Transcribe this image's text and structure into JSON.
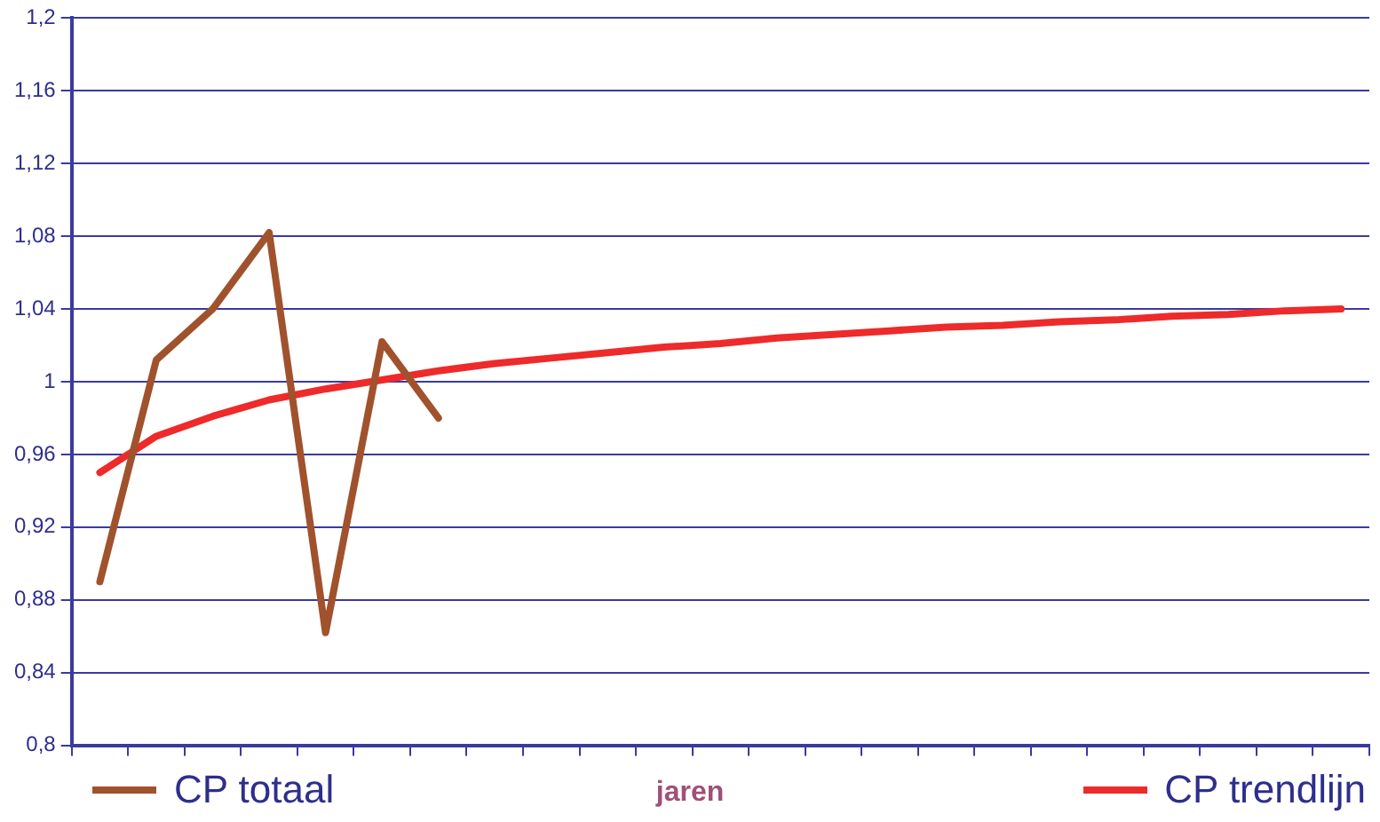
{
  "chart_data": {
    "type": "line",
    "xlabel": "jaren",
    "categories": [
      null,
      null,
      null,
      null,
      null,
      null,
      null,
      null,
      null,
      null,
      null,
      null,
      null,
      null,
      null,
      null,
      null,
      null,
      null,
      null,
      null,
      null,
      null
    ],
    "series": [
      {
        "name": "CP totaal",
        "color": "#a0522d",
        "values": [
          0.89,
          1.012,
          1.04,
          1.082,
          0.862,
          1.022,
          0.98,
          null,
          null,
          null,
          null,
          null,
          null,
          null,
          null,
          null,
          null,
          null,
          null,
          null,
          null,
          null,
          null
        ]
      },
      {
        "name": "CP trendlijn",
        "color": "#ee2a2a",
        "values": [
          0.95,
          0.97,
          0.981,
          0.99,
          0.996,
          1.001,
          1.006,
          1.01,
          1.013,
          1.016,
          1.019,
          1.021,
          1.024,
          1.026,
          1.028,
          1.03,
          1.031,
          1.033,
          1.034,
          1.036,
          1.037,
          1.039,
          1.04
        ]
      }
    ],
    "ylim": [
      0.8,
      1.2
    ],
    "yticks": [
      {
        "value": 0.8,
        "label": "0,8"
      },
      {
        "value": 0.84,
        "label": "0,84"
      },
      {
        "value": 0.88,
        "label": "0,88"
      },
      {
        "value": 0.92,
        "label": "0,92"
      },
      {
        "value": 0.96,
        "label": "0,96"
      },
      1,
      {
        "value": 1.04,
        "label": "1,04"
      },
      {
        "value": 1.08,
        "label": "1,08"
      },
      {
        "value": 1.12,
        "label": "1,12"
      },
      {
        "value": 1.16,
        "label": "1,16"
      },
      {
        "value": 1.2,
        "label": "1,2"
      }
    ],
    "grid": "y",
    "legend": "bottom",
    "tick_labels": "y",
    "marker": "none",
    "line_style": "solid"
  }
}
